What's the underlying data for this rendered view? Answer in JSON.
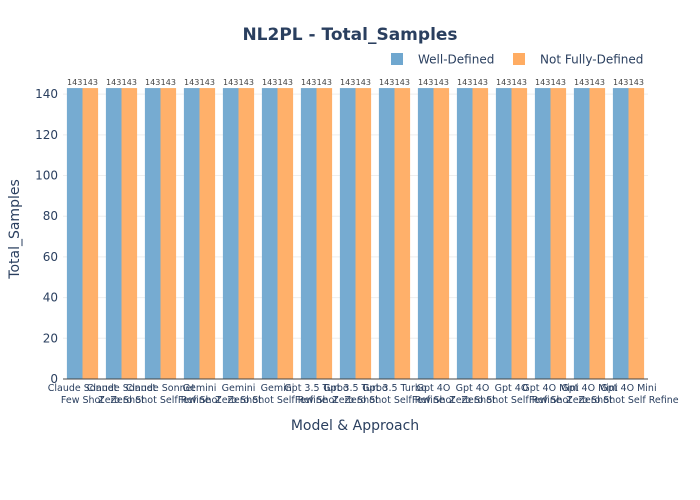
{
  "chart_data": {
    "type": "bar",
    "title": "NL2PL - Total_Samples",
    "xlabel": "Model & Approach",
    "ylabel": "Total_Samples",
    "ylim": [
      0,
      145
    ],
    "yticks": [
      0,
      20,
      40,
      60,
      80,
      100,
      120,
      140
    ],
    "grid": true,
    "legend_position": "top-right",
    "categories": [
      [
        "Claude Sonnet",
        "Few Shot"
      ],
      [
        "Claude Sonnet",
        "Zero Shot"
      ],
      [
        "Claude Sonnet",
        "Zero Shot Self Refine"
      ],
      [
        "Gemini",
        "Few Shot"
      ],
      [
        "Gemini",
        "Zero Shot"
      ],
      [
        "Gemini",
        "Zero Shot Self Refine"
      ],
      [
        "Gpt 3.5 Turbo",
        "Few Shot"
      ],
      [
        "Gpt 3.5 Turbo",
        "Zero Shot"
      ],
      [
        "Gpt 3.5 Turbo",
        "Zero Shot Self Refine"
      ],
      [
        "Gpt 4O",
        "Few Shot"
      ],
      [
        "Gpt 4O",
        "Zero Shot"
      ],
      [
        "Gpt 4O",
        "Zero Shot Self Refine"
      ],
      [
        "Gpt 4O Mini",
        "Few Shot"
      ],
      [
        "Gpt 4O Mini",
        "Zero Shot"
      ],
      [
        "Gpt 4O Mini",
        "Zero Shot Self Refine"
      ]
    ],
    "series": [
      {
        "name": "Well-Defined",
        "color": "#6fa7cf",
        "values": [
          143,
          143,
          143,
          143,
          143,
          143,
          143,
          143,
          143,
          143,
          143,
          143,
          143,
          143,
          143
        ]
      },
      {
        "name": "Not Fully-Defined",
        "color": "#ffac62",
        "values": [
          143,
          143,
          143,
          143,
          143,
          143,
          143,
          143,
          143,
          143,
          143,
          143,
          143,
          143,
          143
        ]
      }
    ]
  }
}
